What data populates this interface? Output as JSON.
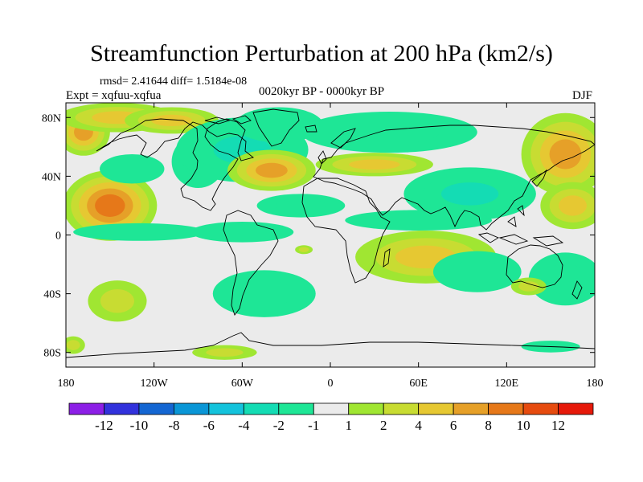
{
  "header": {
    "title": "Streamfunction Perturbation at 200 hPa (km2/s)",
    "stats": "rmsd= 2.41644  diff= 1.5184e-08",
    "experiment": "Expt = xqfuu-xqfua",
    "period": "0020kyr BP - 0000kyr BP",
    "season": "DJF"
  },
  "map": {
    "projection": "cylindrical equidistant",
    "lon_range": [
      -180,
      180
    ],
    "lat_range": [
      -90,
      90
    ],
    "background_color": "#ebebeb",
    "coastline_color": "#000000",
    "lat_ticks": [
      {
        "value": 80,
        "label": "80N"
      },
      {
        "value": 40,
        "label": "40N"
      },
      {
        "value": 0,
        "label": "0"
      },
      {
        "value": -40,
        "label": "40S"
      },
      {
        "value": -80,
        "label": "80S"
      }
    ],
    "lon_ticks": [
      {
        "value": -180,
        "label": "180"
      },
      {
        "value": -120,
        "label": "120W"
      },
      {
        "value": -60,
        "label": "60W"
      },
      {
        "value": 0,
        "label": "0"
      },
      {
        "value": 60,
        "label": "60E"
      },
      {
        "value": 120,
        "label": "120E"
      },
      {
        "value": 180,
        "label": "180"
      }
    ],
    "anomalies": [
      {
        "lon": -168,
        "lat": 70,
        "rx": 18,
        "ry": 16,
        "value": 6
      },
      {
        "lon": -145,
        "lat": 80,
        "rx": 40,
        "ry": 10,
        "value": 4
      },
      {
        "lon": -150,
        "lat": 20,
        "rx": 32,
        "ry": 24,
        "value": 8
      },
      {
        "lon": -135,
        "lat": 45,
        "rx": 22,
        "ry": 10,
        "value": -1
      },
      {
        "lon": -130,
        "lat": 2,
        "rx": 45,
        "ry": 6,
        "value": -1
      },
      {
        "lon": -145,
        "lat": -45,
        "rx": 20,
        "ry": 14,
        "value": 2
      },
      {
        "lon": -175,
        "lat": -75,
        "rx": 8,
        "ry": 6,
        "value": 2
      },
      {
        "lon": -108,
        "lat": 78,
        "rx": 32,
        "ry": 9,
        "value": 4
      },
      {
        "lon": -90,
        "lat": 50,
        "rx": 18,
        "ry": 18,
        "value": -2
      },
      {
        "lon": -60,
        "lat": 58,
        "rx": 45,
        "ry": 22,
        "value": -4
      },
      {
        "lon": -35,
        "lat": 75,
        "rx": 30,
        "ry": 12,
        "value": -2
      },
      {
        "lon": -40,
        "lat": 44,
        "rx": 30,
        "ry": 14,
        "value": 6
      },
      {
        "lon": -20,
        "lat": 20,
        "rx": 30,
        "ry": 8,
        "value": -2
      },
      {
        "lon": -60,
        "lat": 2,
        "rx": 35,
        "ry": 7,
        "value": -1
      },
      {
        "lon": -45,
        "lat": -40,
        "rx": 35,
        "ry": 16,
        "value": -2
      },
      {
        "lon": -72,
        "lat": -80,
        "rx": 22,
        "ry": 5,
        "value": 2
      },
      {
        "lon": -18,
        "lat": -10,
        "rx": 6,
        "ry": 3,
        "value": 2
      },
      {
        "lon": 40,
        "lat": 70,
        "rx": 60,
        "ry": 14,
        "value": -2
      },
      {
        "lon": 30,
        "lat": 48,
        "rx": 40,
        "ry": 8,
        "value": 4
      },
      {
        "lon": 95,
        "lat": 28,
        "rx": 45,
        "ry": 18,
        "value": -4
      },
      {
        "lon": 60,
        "lat": 10,
        "rx": 50,
        "ry": 7,
        "value": -1
      },
      {
        "lon": 65,
        "lat": -15,
        "rx": 48,
        "ry": 18,
        "value": 4
      },
      {
        "lon": 100,
        "lat": -25,
        "rx": 30,
        "ry": 14,
        "value": -2
      },
      {
        "lon": 160,
        "lat": 55,
        "rx": 30,
        "ry": 28,
        "value": 6
      },
      {
        "lon": 165,
        "lat": 20,
        "rx": 22,
        "ry": 16,
        "value": 4
      },
      {
        "lon": 160,
        "lat": -30,
        "rx": 25,
        "ry": 18,
        "value": -2
      },
      {
        "lon": 135,
        "lat": -35,
        "rx": 12,
        "ry": 6,
        "value": 2
      },
      {
        "lon": 150,
        "lat": -76,
        "rx": 20,
        "ry": 4,
        "value": -1
      }
    ]
  },
  "colorbar": {
    "colors": [
      "#8c1fe6",
      "#3232dc",
      "#1466d2",
      "#0a96d6",
      "#14c3dc",
      "#14dcb4",
      "#1ee696",
      "#ebebeb",
      "#a0e632",
      "#c8dc32",
      "#e6c832",
      "#e6a028",
      "#e67819",
      "#e64b0f",
      "#e6190a"
    ],
    "labels": [
      "-12",
      "-10",
      "-8",
      "-6",
      "-4",
      "-2",
      "-1",
      "1",
      "2",
      "4",
      "6",
      "8",
      "10",
      "12"
    ],
    "levels": [
      -12,
      -10,
      -8,
      -6,
      -4,
      -2,
      -1,
      1,
      2,
      4,
      6,
      8,
      10,
      12
    ]
  }
}
